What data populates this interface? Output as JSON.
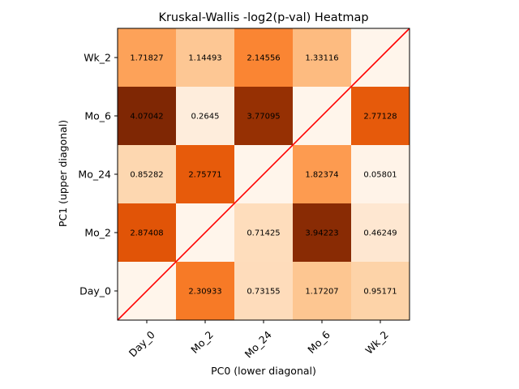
{
  "chart_data": {
    "type": "heatmap",
    "title": "Kruskal-Wallis -log2(p-val) Heatmap",
    "xlabel": "PC0 (lower diagonal)",
    "ylabel": "PC1 (upper diagonal)",
    "x_categories": [
      "Day_0",
      "Mo_2",
      "Mo_24",
      "Mo_6",
      "Wk_2"
    ],
    "y_categories_top_to_bottom": [
      "Wk_2",
      "Mo_6",
      "Mo_24",
      "Mo_2",
      "Day_0"
    ],
    "values_rows_top_to_bottom": [
      [
        "1.71827",
        "1.14493",
        "2.14556",
        "1.33116",
        ""
      ],
      [
        "4.07042",
        "0.2645",
        "3.77095",
        "",
        "2.77128"
      ],
      [
        "0.85282",
        "2.75771",
        "",
        "1.82374",
        "0.05801"
      ],
      [
        "2.87408",
        "",
        "0.71425",
        "3.94223",
        "0.46249"
      ],
      [
        "",
        "2.30933",
        "0.73155",
        "1.17207",
        "0.95171"
      ]
    ],
    "color_range": [
      0,
      4.07042
    ],
    "colormap": "Oranges",
    "diagonal_line_color": "#ff0000",
    "grid": false,
    "legend": "none"
  }
}
